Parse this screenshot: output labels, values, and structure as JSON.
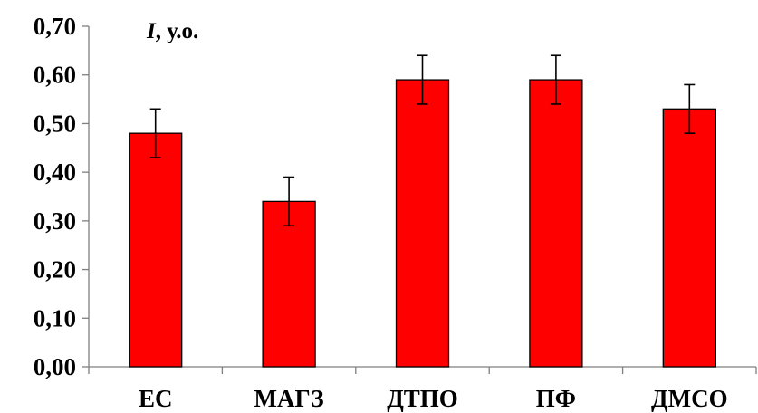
{
  "chart_data": {
    "type": "bar",
    "categories": [
      "ЕС",
      "МАГЗ",
      "ДТПО",
      "ПФ",
      "ДМСО"
    ],
    "series": [
      {
        "values": [
          0.48,
          0.34,
          0.59,
          0.59,
          0.53
        ],
        "errors": [
          0.05,
          0.05,
          0.05,
          0.05,
          0.05
        ]
      }
    ],
    "title": "",
    "xlabel": "",
    "ylabel_symbol": "I",
    "ylabel_unit": ", у.о.",
    "ylim": [
      0,
      0.7
    ],
    "yticks": [
      0.0,
      0.1,
      0.2,
      0.3,
      0.4,
      0.5,
      0.6,
      0.7
    ],
    "ytick_labels": [
      "0,00",
      "0,10",
      "0,20",
      "0,30",
      "0,40",
      "0,50",
      "0,60",
      "0,70"
    ],
    "grid": false,
    "legend": "none",
    "bar_color": "#ff0000",
    "bar_edge_color": "#000000"
  }
}
